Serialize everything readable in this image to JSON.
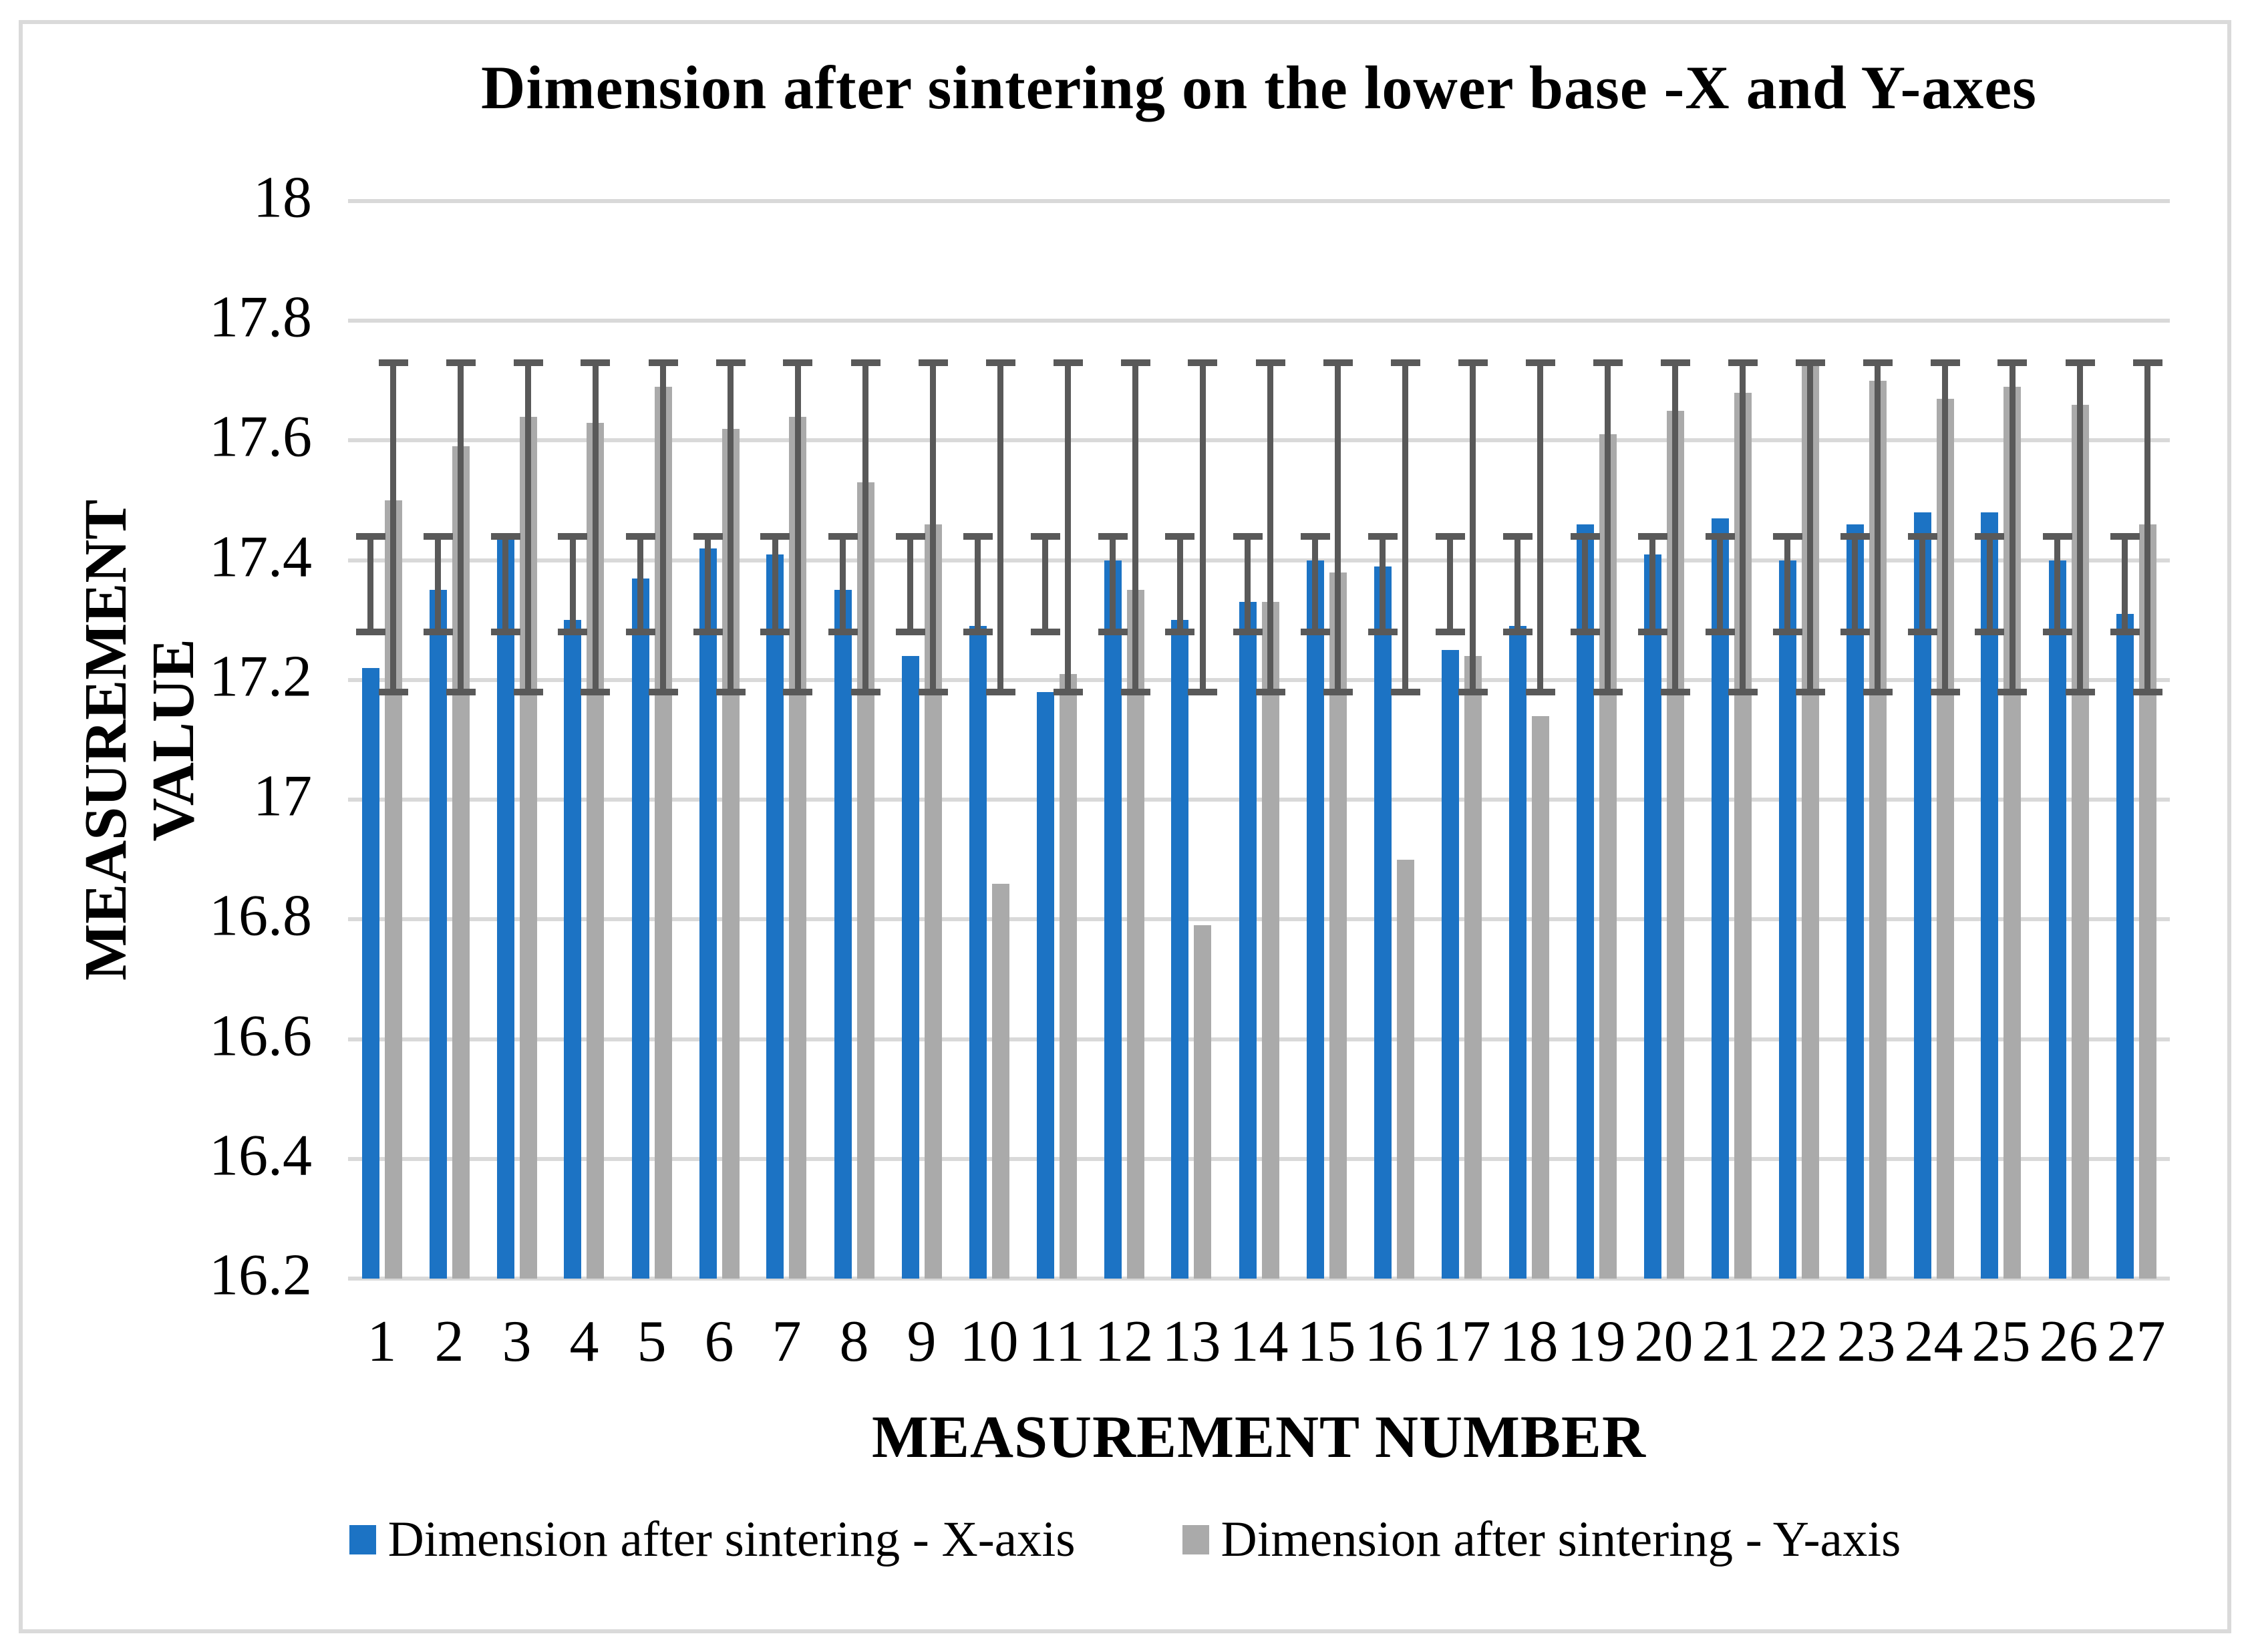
{
  "title": "Dimension after sintering on the lower base -X and Y-axes",
  "y_axis": {
    "title_line1": "MEASUREMENT",
    "title_line2": "VALUE",
    "tick_labels": [
      "18",
      "17.8",
      "17.6",
      "17.4",
      "17.2",
      "17",
      "16.8",
      "16.6",
      "16.4",
      "16.2"
    ]
  },
  "x_axis": {
    "title": "MEASUREMENT NUMBER"
  },
  "legend": {
    "items": [
      {
        "label": "Dimension after sintering - X-axis",
        "color": "#1C73C4"
      },
      {
        "label": "Dimension after sintering - Y-axis",
        "color": "#AAAAAA"
      }
    ]
  },
  "colors": {
    "x_series": "#1C73C4",
    "y_series": "#AAAAAA",
    "error_bar": "#595959",
    "gridline": "#D9D9D9",
    "chart_border": "#DADADA"
  },
  "chart_data": {
    "type": "bar",
    "title": "Dimension after sintering on the lower base -X and Y-axes",
    "xlabel": "MEASUREMENT NUMBER",
    "ylabel": "MEASUREMENT VALUE",
    "ylim": [
      16.2,
      18
    ],
    "ytick_step": 0.2,
    "grid": true,
    "legend_position": "bottom",
    "categories": [
      "1",
      "2",
      "3",
      "4",
      "5",
      "6",
      "7",
      "8",
      "9",
      "10",
      "11",
      "12",
      "13",
      "14",
      "15",
      "16",
      "17",
      "18",
      "19",
      "20",
      "21",
      "22",
      "23",
      "24",
      "25",
      "26",
      "27"
    ],
    "series": [
      {
        "name": "Dimension after sintering - X-axis",
        "color": "#1C73C4",
        "values": [
          17.22,
          17.35,
          17.44,
          17.3,
          17.37,
          17.42,
          17.41,
          17.35,
          17.24,
          17.29,
          17.18,
          17.4,
          17.3,
          17.33,
          17.4,
          17.39,
          17.25,
          17.29,
          17.46,
          17.41,
          17.47,
          17.4,
          17.46,
          17.48,
          17.48,
          17.4,
          17.31
        ],
        "error_bars": {
          "min": 17.28,
          "max": 17.44
        }
      },
      {
        "name": "Dimension after sintering - Y-axis",
        "color": "#AAAAAA",
        "values": [
          17.5,
          17.59,
          17.64,
          17.63,
          17.69,
          17.62,
          17.64,
          17.53,
          17.46,
          16.86,
          17.21,
          17.35,
          16.79,
          17.33,
          17.38,
          16.9,
          17.24,
          17.14,
          17.61,
          17.65,
          17.68,
          17.73,
          17.7,
          17.67,
          17.69,
          17.66,
          17.46
        ],
        "error_bars": {
          "min": 17.18,
          "max": 17.73
        }
      }
    ]
  }
}
